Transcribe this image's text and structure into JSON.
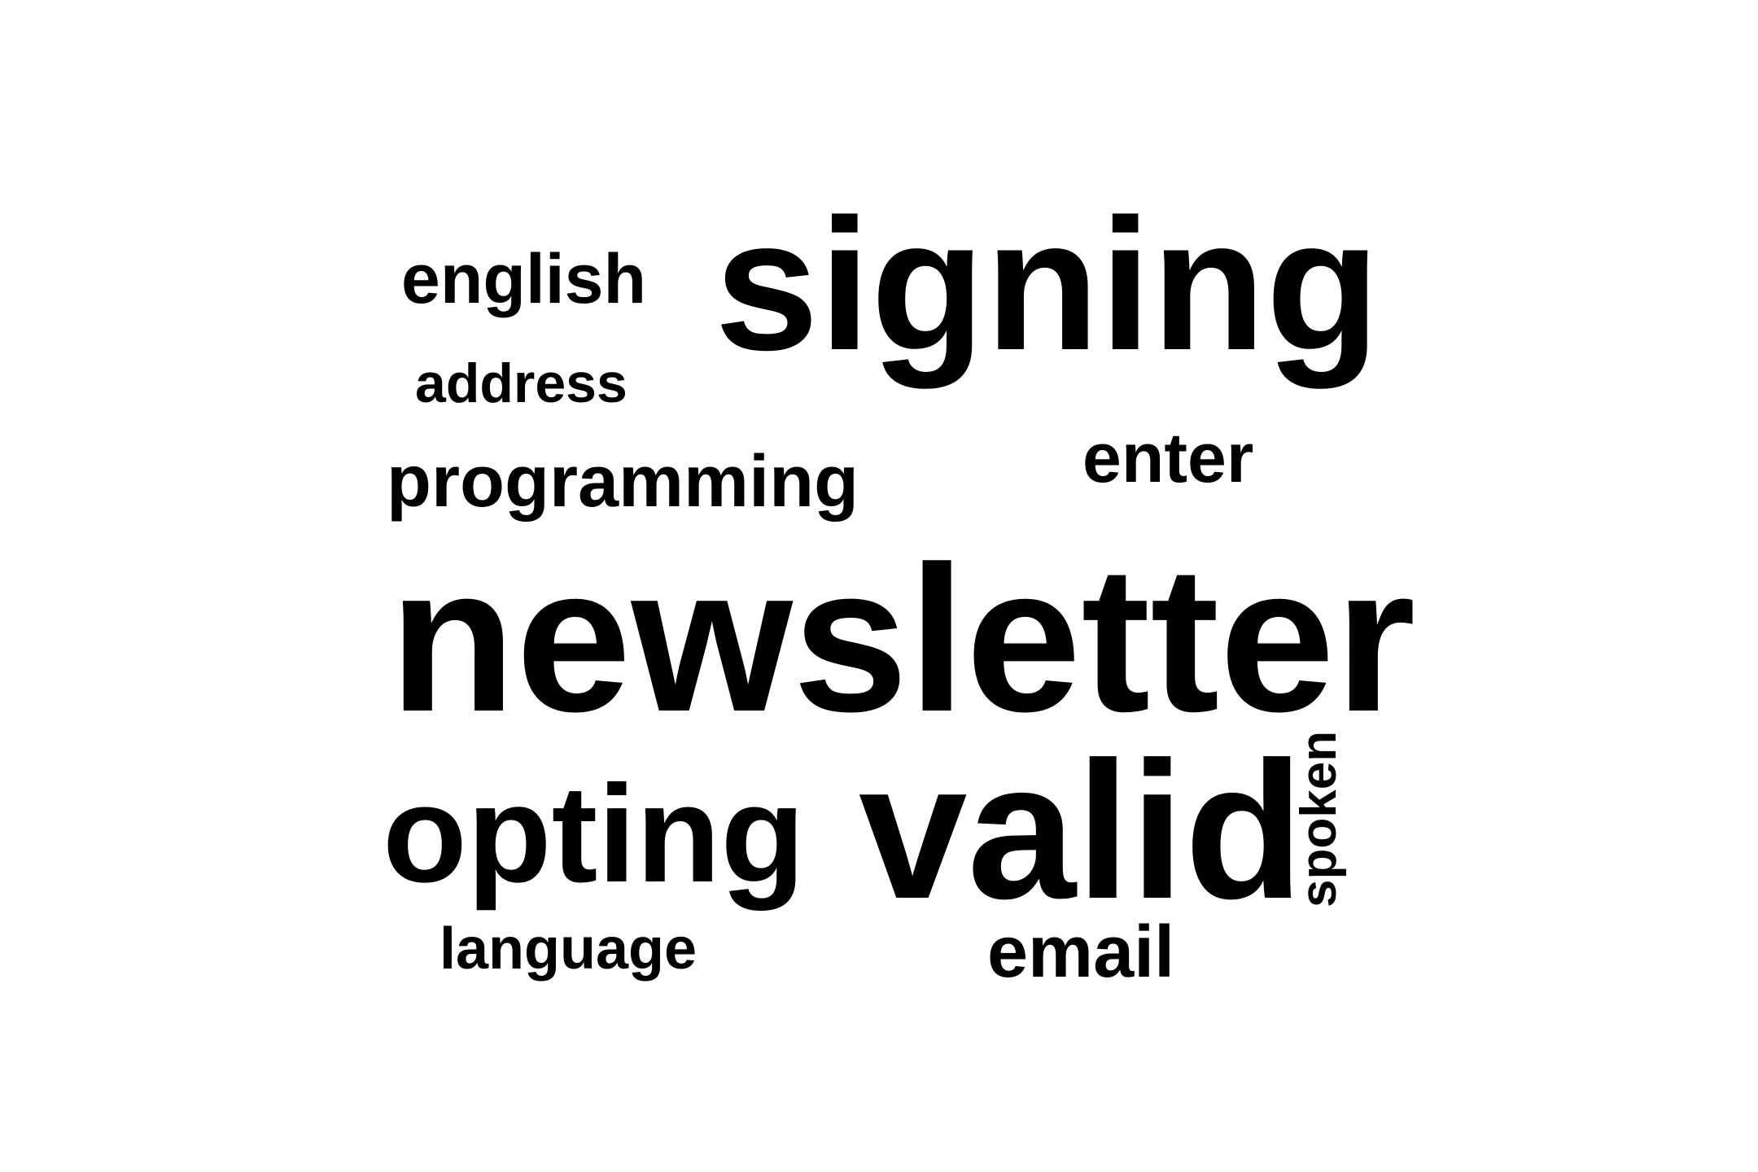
{
  "words": {
    "signing": "signing",
    "newsletter": "newsletter",
    "valid": "valid",
    "opting": "opting",
    "programming": "programming",
    "english": "english",
    "address": "address",
    "enter": "enter",
    "language": "language",
    "email": "email",
    "spoken": "spoken"
  },
  "colors": {
    "background": "#ffffff",
    "text": "#000000"
  }
}
